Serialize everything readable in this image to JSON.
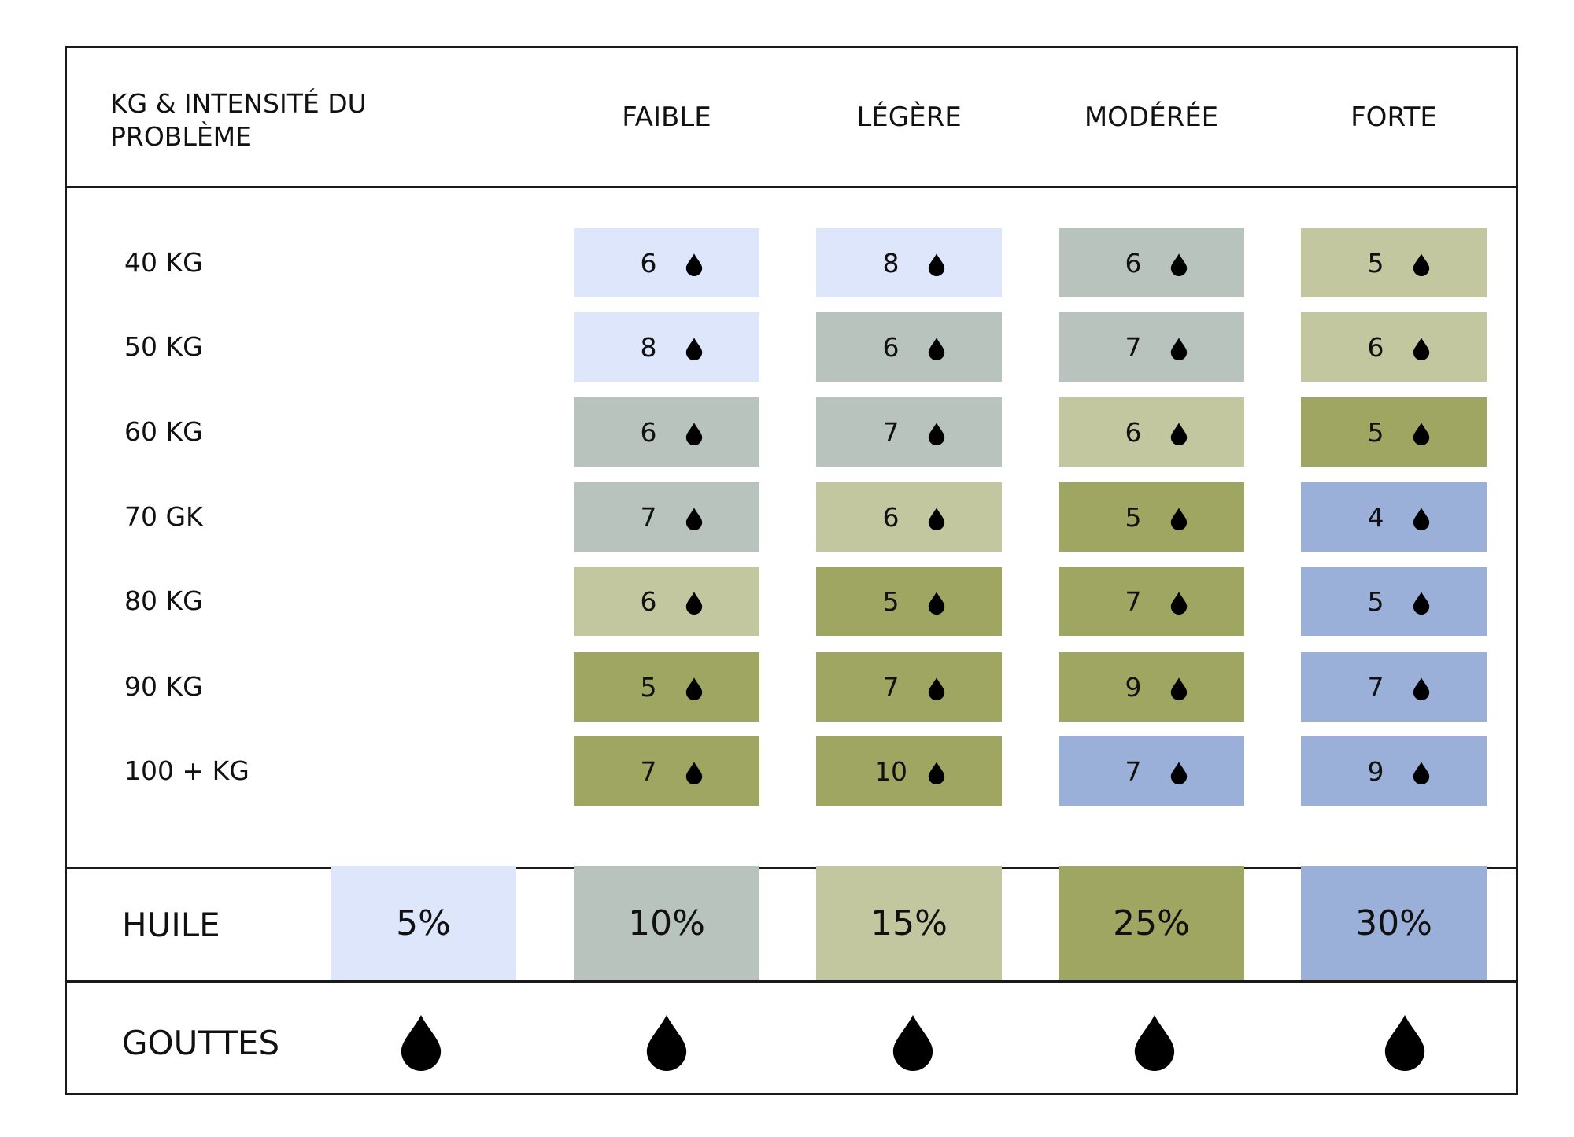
{
  "header": {
    "title": "KG & INTENSITÉ DU PROBLÈME",
    "columns": [
      "FAIBLE",
      "LÉGÈRE",
      "MODÉRÉE",
      "FORTE"
    ]
  },
  "rows": [
    {
      "label": "40 KG",
      "values": [
        6,
        8,
        6,
        5
      ]
    },
    {
      "label": "50 KG",
      "values": [
        8,
        6,
        7,
        6
      ]
    },
    {
      "label": "60 KG",
      "values": [
        6,
        7,
        6,
        5
      ]
    },
    {
      "label": "70 GK",
      "values": [
        7,
        6,
        5,
        4
      ]
    },
    {
      "label": "80 KG",
      "values": [
        6,
        5,
        7,
        5
      ]
    },
    {
      "label": "90 KG",
      "values": [
        5,
        7,
        9,
        7
      ]
    },
    {
      "label": "100 + KG",
      "values": [
        7,
        10,
        7,
        9
      ]
    }
  ],
  "huile": {
    "label": "HUILE",
    "levels": [
      "5%",
      "10%",
      "15%",
      "25%",
      "30%"
    ]
  },
  "gouttes": {
    "label": "GOUTTES",
    "icon": "drop-icon"
  },
  "colors": {
    "5%": "#dde6fb",
    "10%": "#b9c3bd",
    "15%": "#c3c79f",
    "25%": "#9ea661",
    "30%": "#9bb0d9",
    "border": "#1a1a1a"
  },
  "cell_levels": [
    [
      "5%",
      "5%",
      "10%",
      "15%"
    ],
    [
      "5%",
      "10%",
      "10%",
      "15%"
    ],
    [
      "10%",
      "10%",
      "15%",
      "25%"
    ],
    [
      "10%",
      "15%",
      "25%",
      "30%"
    ],
    [
      "15%",
      "25%",
      "25%",
      "30%"
    ],
    [
      "25%",
      "25%",
      "25%",
      "30%"
    ],
    [
      "25%",
      "25%",
      "30%",
      "30%"
    ]
  ]
}
